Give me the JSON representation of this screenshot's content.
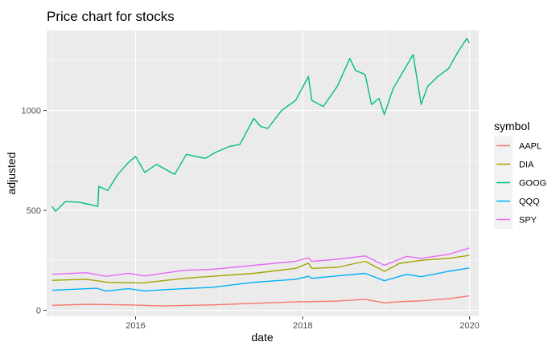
{
  "chart_data": {
    "type": "line",
    "title": "Price chart for stocks",
    "xlabel": "date",
    "ylabel": "adjusted",
    "x_ticks": [
      "2016",
      "2018",
      "2020"
    ],
    "y_ticks": [
      "0",
      "500",
      "1000"
    ],
    "xlim": [
      "2014-12-08",
      "2020-02-10"
    ],
    "ylim": [
      -30,
      1400
    ],
    "grid": true,
    "legend": {
      "title": "symbol",
      "position": "right"
    },
    "series": [
      {
        "name": "AAPL",
        "color": "#F8766D",
        "points": [
          [
            "2015-01-01",
            25
          ],
          [
            "2015-06-01",
            30
          ],
          [
            "2015-12-01",
            27
          ],
          [
            "2016-05-01",
            22
          ],
          [
            "2016-12-01",
            27
          ],
          [
            "2017-06-01",
            35
          ],
          [
            "2017-12-01",
            42
          ],
          [
            "2018-06-01",
            46
          ],
          [
            "2018-10-01",
            55
          ],
          [
            "2018-12-25",
            37
          ],
          [
            "2019-03-01",
            43
          ],
          [
            "2019-06-01",
            47
          ],
          [
            "2019-10-01",
            58
          ],
          [
            "2019-12-31",
            72
          ]
        ]
      },
      {
        "name": "DIA",
        "color": "#A3A500",
        "points": [
          [
            "2015-01-01",
            150
          ],
          [
            "2015-06-01",
            155
          ],
          [
            "2015-09-01",
            140
          ],
          [
            "2016-02-01",
            137
          ],
          [
            "2016-08-01",
            160
          ],
          [
            "2016-12-01",
            170
          ],
          [
            "2017-06-01",
            185
          ],
          [
            "2017-12-01",
            210
          ],
          [
            "2018-01-26",
            236
          ],
          [
            "2018-02-10",
            210
          ],
          [
            "2018-06-01",
            215
          ],
          [
            "2018-10-01",
            245
          ],
          [
            "2018-12-25",
            195
          ],
          [
            "2019-03-01",
            235
          ],
          [
            "2019-06-01",
            250
          ],
          [
            "2019-10-01",
            260
          ],
          [
            "2019-12-31",
            275
          ]
        ]
      },
      {
        "name": "GOOG",
        "color": "#00BF7D",
        "points": [
          [
            "2015-01-01",
            520
          ],
          [
            "2015-01-15",
            495
          ],
          [
            "2015-03-01",
            545
          ],
          [
            "2015-05-01",
            540
          ],
          [
            "2015-07-01",
            525
          ],
          [
            "2015-07-20",
            520
          ],
          [
            "2015-07-24",
            620
          ],
          [
            "2015-09-01",
            600
          ],
          [
            "2015-10-15",
            680
          ],
          [
            "2015-12-01",
            740
          ],
          [
            "2016-01-01",
            770
          ],
          [
            "2016-02-10",
            690
          ],
          [
            "2016-04-01",
            730
          ],
          [
            "2016-06-20",
            680
          ],
          [
            "2016-08-10",
            780
          ],
          [
            "2016-11-01",
            760
          ],
          [
            "2016-12-15",
            790
          ],
          [
            "2017-02-15",
            820
          ],
          [
            "2017-04-01",
            830
          ],
          [
            "2017-06-01",
            960
          ],
          [
            "2017-07-01",
            920
          ],
          [
            "2017-08-01",
            910
          ],
          [
            "2017-10-01",
            1000
          ],
          [
            "2017-12-01",
            1050
          ],
          [
            "2018-01-26",
            1170
          ],
          [
            "2018-02-10",
            1050
          ],
          [
            "2018-04-01",
            1020
          ],
          [
            "2018-06-01",
            1120
          ],
          [
            "2018-07-26",
            1260
          ],
          [
            "2018-08-20",
            1200
          ],
          [
            "2018-10-01",
            1180
          ],
          [
            "2018-10-29",
            1030
          ],
          [
            "2018-12-01",
            1060
          ],
          [
            "2018-12-24",
            980
          ],
          [
            "2019-02-01",
            1110
          ],
          [
            "2019-04-29",
            1280
          ],
          [
            "2019-06-03",
            1030
          ],
          [
            "2019-07-01",
            1120
          ],
          [
            "2019-08-15",
            1170
          ],
          [
            "2019-10-01",
            1210
          ],
          [
            "2019-11-15",
            1300
          ],
          [
            "2019-12-20",
            1360
          ],
          [
            "2019-12-31",
            1337
          ]
        ]
      },
      {
        "name": "QQQ",
        "color": "#00B0F6",
        "points": [
          [
            "2015-01-01",
            100
          ],
          [
            "2015-07-15",
            110
          ],
          [
            "2015-08-25",
            96
          ],
          [
            "2015-12-01",
            108
          ],
          [
            "2016-02-10",
            97
          ],
          [
            "2016-06-01",
            105
          ],
          [
            "2016-12-01",
            115
          ],
          [
            "2017-06-01",
            140
          ],
          [
            "2017-12-01",
            155
          ],
          [
            "2018-01-26",
            170
          ],
          [
            "2018-02-10",
            160
          ],
          [
            "2018-06-01",
            172
          ],
          [
            "2018-10-01",
            185
          ],
          [
            "2018-12-24",
            148
          ],
          [
            "2019-04-01",
            180
          ],
          [
            "2019-06-03",
            168
          ],
          [
            "2019-10-01",
            195
          ],
          [
            "2019-12-31",
            212
          ]
        ]
      },
      {
        "name": "SPY",
        "color": "#E76BF3",
        "points": [
          [
            "2015-01-01",
            180
          ],
          [
            "2015-06-01",
            188
          ],
          [
            "2015-08-25",
            170
          ],
          [
            "2015-12-01",
            185
          ],
          [
            "2016-02-10",
            172
          ],
          [
            "2016-08-01",
            200
          ],
          [
            "2016-12-01",
            205
          ],
          [
            "2017-06-01",
            225
          ],
          [
            "2017-12-01",
            245
          ],
          [
            "2018-01-26",
            262
          ],
          [
            "2018-02-10",
            245
          ],
          [
            "2018-06-01",
            255
          ],
          [
            "2018-10-01",
            272
          ],
          [
            "2018-12-24",
            225
          ],
          [
            "2019-04-01",
            270
          ],
          [
            "2019-06-03",
            260
          ],
          [
            "2019-10-01",
            280
          ],
          [
            "2019-12-31",
            312
          ]
        ]
      }
    ]
  }
}
